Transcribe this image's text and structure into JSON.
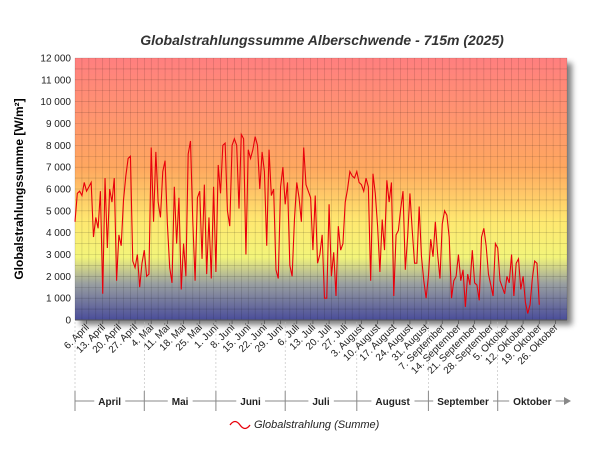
{
  "chart_data": {
    "type": "line",
    "title": "Globalstrahlungssumme Alberschwende - 715m (2025)",
    "ylabel": "Globalstrahlungssumme [W/m²]",
    "xlabel": "",
    "ylim": [
      0,
      12000
    ],
    "yticks": [
      "0",
      "1 000",
      "2 000",
      "3 000",
      "4 000",
      "5 000",
      "6 000",
      "7 000",
      "8 000",
      "9 000",
      "10 000",
      "11 000",
      "12 000"
    ],
    "grid": true,
    "legend_position": "bottom",
    "x_start": "1. April",
    "x_end": "31. Oktober",
    "x_tick_labels": [
      "6. April",
      "13. April",
      "20. April",
      "27. April",
      "4. Mai",
      "11. Mai",
      "18. Mai",
      "25. Mai",
      "1. Juni",
      "8. Juni",
      "15. Juni",
      "22. Juni",
      "29. Juni",
      "6. Juli",
      "13. Juli",
      "20. Juli",
      "27. Juli",
      "3. August",
      "10. August",
      "17. August",
      "24. August",
      "31. August",
      "7. September",
      "14. September",
      "21. September",
      "28. September",
      "5. Oktober",
      "12. Oktober",
      "19. Oktober",
      "26. Oktober"
    ],
    "months": [
      {
        "label": "April",
        "days": 30
      },
      {
        "label": "Mai",
        "days": 31
      },
      {
        "label": "Juni",
        "days": 30
      },
      {
        "label": "Juli",
        "days": 31
      },
      {
        "label": "August",
        "days": 31
      },
      {
        "label": "September",
        "days": 30
      },
      {
        "label": "Oktober",
        "days": 31
      }
    ],
    "series": [
      {
        "name": "Globalstrahlung (Summe)",
        "color": "#e8000b",
        "values": [
          4500,
          5800,
          5900,
          5700,
          6300,
          5900,
          6100,
          6300,
          3800,
          4700,
          4200,
          5900,
          1200,
          6500,
          3300,
          6000,
          5400,
          6500,
          1800,
          3900,
          3400,
          5500,
          6600,
          7400,
          7500,
          2700,
          2400,
          3000,
          1500,
          2600,
          3200,
          2000,
          2100,
          7900,
          4500,
          7700,
          5400,
          4700,
          6800,
          7300,
          4400,
          2400,
          1700,
          6100,
          3500,
          5600,
          1400,
          3500,
          2000,
          7600,
          8200,
          4500,
          1800,
          5600,
          5900,
          2800,
          6200,
          2100,
          4700,
          1900,
          6100,
          2200,
          7100,
          5800,
          8000,
          8100,
          5000,
          4300,
          8000,
          8300,
          8000,
          5100,
          8500,
          8300,
          3000,
          7800,
          7400,
          7800,
          8400,
          8000,
          6000,
          7700,
          6800,
          3400,
          7800,
          5700,
          6000,
          2300,
          1900,
          6100,
          7000,
          5300,
          6300,
          2500,
          2000,
          4600,
          6300,
          5600,
          4500,
          7900,
          6200,
          5900,
          5600,
          3200,
          5700,
          2600,
          3000,
          3900,
          1000,
          1000,
          5300,
          2000,
          3100,
          1100,
          4300,
          3200,
          3500,
          5400,
          6000,
          6800,
          6600,
          6500,
          6800,
          6300,
          6200,
          5900,
          6500,
          6100,
          1800,
          6700,
          5800,
          4300,
          2200,
          4600,
          3200,
          6400,
          5400,
          6300,
          1100,
          3900,
          4100,
          5100,
          5900,
          2300,
          3800,
          5800,
          4100,
          2600,
          2600,
          5200,
          2900,
          1800,
          1000,
          2000,
          3700,
          2900,
          4500,
          3000,
          1900,
          4400,
          5000,
          4800,
          3800,
          1000,
          1800,
          2000,
          3000,
          1800,
          2300,
          600,
          2100,
          1600,
          3200,
          1700,
          1600,
          900,
          3800,
          4200,
          3400,
          2100,
          1600,
          1100,
          3500,
          3300,
          1800,
          1500,
          1200,
          2000,
          1700,
          3000,
          1100,
          2600,
          2800,
          1400,
          2000,
          800,
          300,
          700,
          1900,
          2700,
          2600,
          700
        ]
      }
    ]
  }
}
